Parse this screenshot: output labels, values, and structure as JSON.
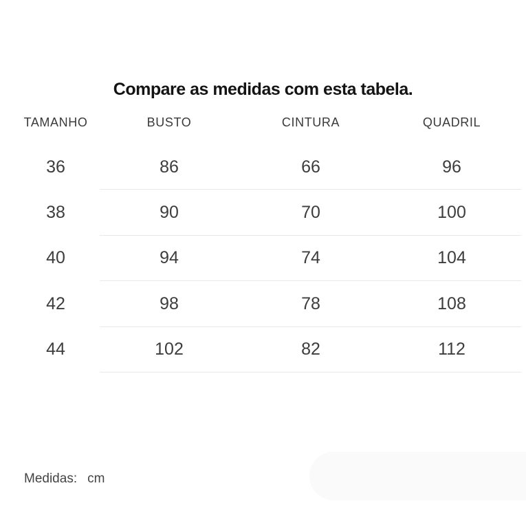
{
  "title": "Compare as medidas com esta tabela.",
  "table": {
    "columns": [
      "TAMANHO",
      "BUSTO",
      "CINTURA",
      "QUADRIL"
    ],
    "rows": [
      [
        "36",
        "86",
        "66",
        "96"
      ],
      [
        "38",
        "90",
        "70",
        "100"
      ],
      [
        "40",
        "94",
        "74",
        "104"
      ],
      [
        "42",
        "98",
        "78",
        "108"
      ],
      [
        "44",
        "102",
        "82",
        "112"
      ]
    ]
  },
  "footer": {
    "label": "Medidas:",
    "unit": "cm"
  },
  "colors": {
    "title_text": "#141414",
    "body_text": "#3d3d3d",
    "divider": "#e8e8e8",
    "corner_pill": "#fafafa",
    "background": "#ffffff"
  }
}
